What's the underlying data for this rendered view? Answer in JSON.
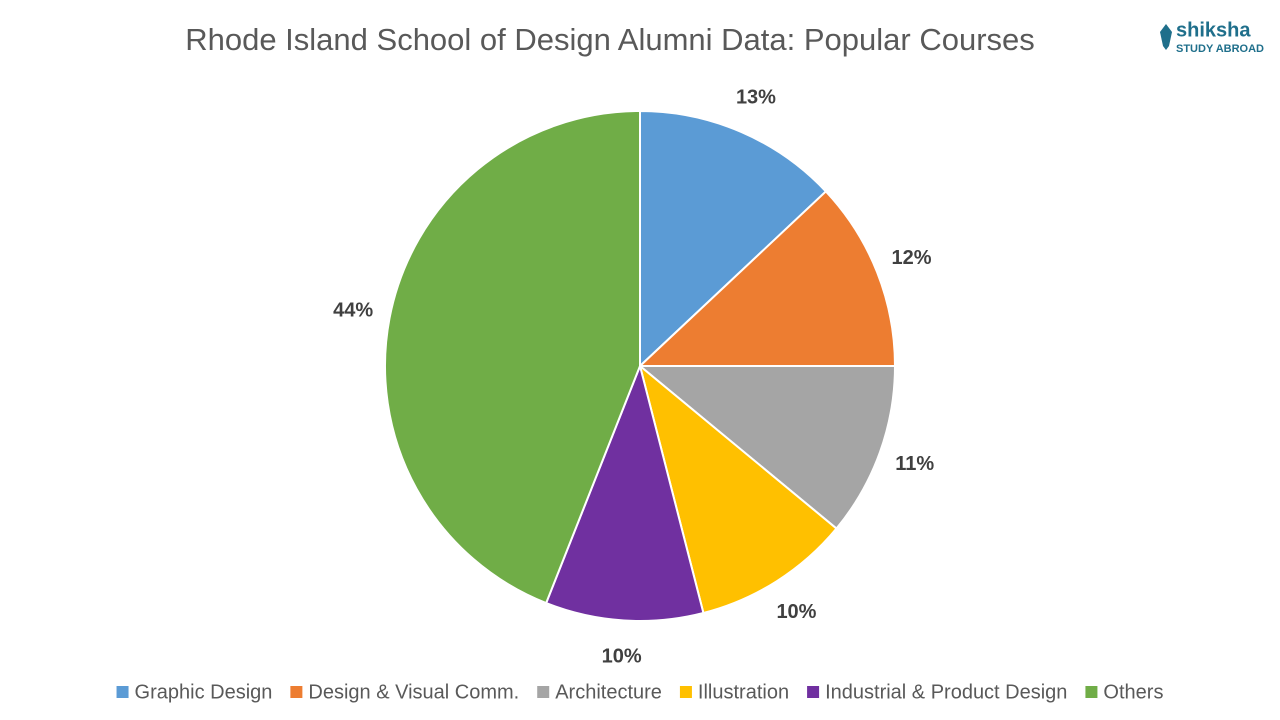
{
  "chart_data": {
    "type": "pie",
    "title": "Rhode Island School of Design Alumni Data: Popular Courses",
    "categories": [
      "Graphic Design",
      "Design & Visual Comm.",
      "Architecture",
      "Illustration",
      "Industrial & Product Design",
      "Others"
    ],
    "values": [
      13,
      12,
      11,
      10,
      10,
      44
    ],
    "value_labels": [
      "13%",
      "12%",
      "11%",
      "10%",
      "10%",
      "44%"
    ],
    "colors": [
      "#5b9bd5",
      "#ed7d31",
      "#a5a5a5",
      "#ffc000",
      "#7030a0",
      "#70ad47"
    ],
    "legend": "bottom"
  },
  "logo": {
    "name": "shiksha",
    "tagline": "STUDY ABROAD"
  }
}
